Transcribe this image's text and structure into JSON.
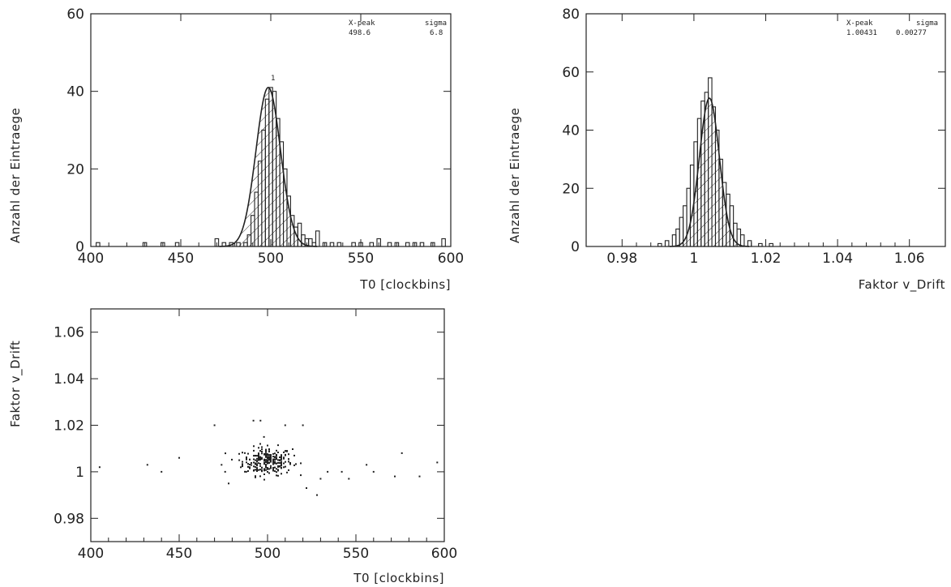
{
  "chart_data": [
    {
      "type": "histogram",
      "xlabel": "T0 [clockbins]",
      "ylabel": "Anzahl der Eintraege",
      "xlim": [
        400,
        600
      ],
      "ylim": [
        0,
        60
      ],
      "xticks": [
        "400",
        "450",
        "500",
        "550",
        "600"
      ],
      "yticks": [
        "0",
        "20",
        "40",
        "60"
      ],
      "stats": {
        "header": [
          "X-peak",
          "sigma"
        ],
        "values": [
          "498.6",
          "6.8"
        ]
      },
      "fit": {
        "type": "gauss",
        "mean": 498.6,
        "sigma": 6.8,
        "amplitude": 41
      },
      "peak_marker": "1",
      "bin_width": 2,
      "bins": [
        [
          404,
          1
        ],
        [
          430,
          1
        ],
        [
          440,
          1
        ],
        [
          448,
          1
        ],
        [
          470,
          2
        ],
        [
          474,
          1
        ],
        [
          478,
          1
        ],
        [
          482,
          1
        ],
        [
          486,
          1
        ],
        [
          488,
          3
        ],
        [
          490,
          8
        ],
        [
          492,
          14
        ],
        [
          494,
          22
        ],
        [
          496,
          30
        ],
        [
          498,
          38
        ],
        [
          500,
          41
        ],
        [
          502,
          40
        ],
        [
          504,
          33
        ],
        [
          506,
          27
        ],
        [
          508,
          20
        ],
        [
          510,
          13
        ],
        [
          512,
          8
        ],
        [
          514,
          5
        ],
        [
          516,
          6
        ],
        [
          518,
          3
        ],
        [
          520,
          2
        ],
        [
          522,
          2
        ],
        [
          524,
          1
        ],
        [
          526,
          4
        ],
        [
          530,
          1
        ],
        [
          534,
          1
        ],
        [
          538,
          1
        ],
        [
          546,
          1
        ],
        [
          550,
          1
        ],
        [
          556,
          1
        ],
        [
          560,
          2
        ],
        [
          566,
          1
        ],
        [
          570,
          1
        ],
        [
          576,
          1
        ],
        [
          580,
          1
        ],
        [
          584,
          1
        ],
        [
          590,
          1
        ],
        [
          596,
          2
        ]
      ]
    },
    {
      "type": "histogram",
      "xlabel": "Faktor v_Drift",
      "ylabel": "Anzahl der Eintraege",
      "xlim": [
        0.97,
        1.07
      ],
      "ylim": [
        0,
        80
      ],
      "xticks": [
        "0.98",
        "1",
        "1.02",
        "1.04",
        "1.06"
      ],
      "yticks": [
        "0",
        "20",
        "40",
        "60",
        "80"
      ],
      "stats": {
        "header": [
          "X-peak",
          "sigma"
        ],
        "values": [
          "1.00431",
          "0.00277"
        ]
      },
      "fit": {
        "type": "gauss",
        "mean": 1.00431,
        "sigma": 0.00277,
        "amplitude": 51
      },
      "bin_width": 0.001,
      "bins": [
        [
          0.9905,
          1
        ],
        [
          0.9925,
          2
        ],
        [
          0.9945,
          4
        ],
        [
          0.9955,
          6
        ],
        [
          0.9965,
          10
        ],
        [
          0.9975,
          14
        ],
        [
          0.9985,
          20
        ],
        [
          0.9995,
          28
        ],
        [
          1.0005,
          36
        ],
        [
          1.0015,
          44
        ],
        [
          1.0025,
          50
        ],
        [
          1.0035,
          53
        ],
        [
          1.0045,
          58
        ],
        [
          1.0055,
          48
        ],
        [
          1.0065,
          40
        ],
        [
          1.0075,
          30
        ],
        [
          1.0085,
          22
        ],
        [
          1.0095,
          18
        ],
        [
          1.0105,
          14
        ],
        [
          1.0115,
          8
        ],
        [
          1.0125,
          6
        ],
        [
          1.0135,
          4
        ],
        [
          1.0155,
          2
        ],
        [
          1.0185,
          1
        ],
        [
          1.0215,
          1
        ]
      ]
    },
    {
      "type": "scatter",
      "xlabel": "T0 [clockbins]",
      "ylabel": "Faktor v_Drift",
      "xlim": [
        400,
        600
      ],
      "ylim": [
        0.97,
        1.07
      ],
      "xticks": [
        "400",
        "450",
        "500",
        "550",
        "600"
      ],
      "yticks": [
        "0.98",
        "1",
        "1.02",
        "1.04",
        "1.06"
      ],
      "cluster": {
        "x_mean": 500,
        "x_sigma": 7,
        "y_mean": 1.0045,
        "y_sigma": 0.003,
        "count": 260
      },
      "outliers": [
        [
          405,
          1.002
        ],
        [
          432,
          1.003
        ],
        [
          440,
          1.0
        ],
        [
          450,
          1.006
        ],
        [
          470,
          1.02
        ],
        [
          474,
          1.003
        ],
        [
          476,
          1.0
        ],
        [
          478,
          0.995
        ],
        [
          484,
          1.005
        ],
        [
          488,
          1.0
        ],
        [
          492,
          1.022
        ],
        [
          496,
          1.022
        ],
        [
          498,
          1.015
        ],
        [
          510,
          1.02
        ],
        [
          520,
          1.02
        ],
        [
          522,
          0.993
        ],
        [
          528,
          0.99
        ],
        [
          530,
          0.997
        ],
        [
          534,
          1.0
        ],
        [
          542,
          1.0
        ],
        [
          546,
          0.997
        ],
        [
          556,
          1.003
        ],
        [
          560,
          1.0
        ],
        [
          572,
          0.998
        ],
        [
          576,
          1.008
        ],
        [
          586,
          0.998
        ],
        [
          596,
          1.004
        ]
      ]
    }
  ]
}
